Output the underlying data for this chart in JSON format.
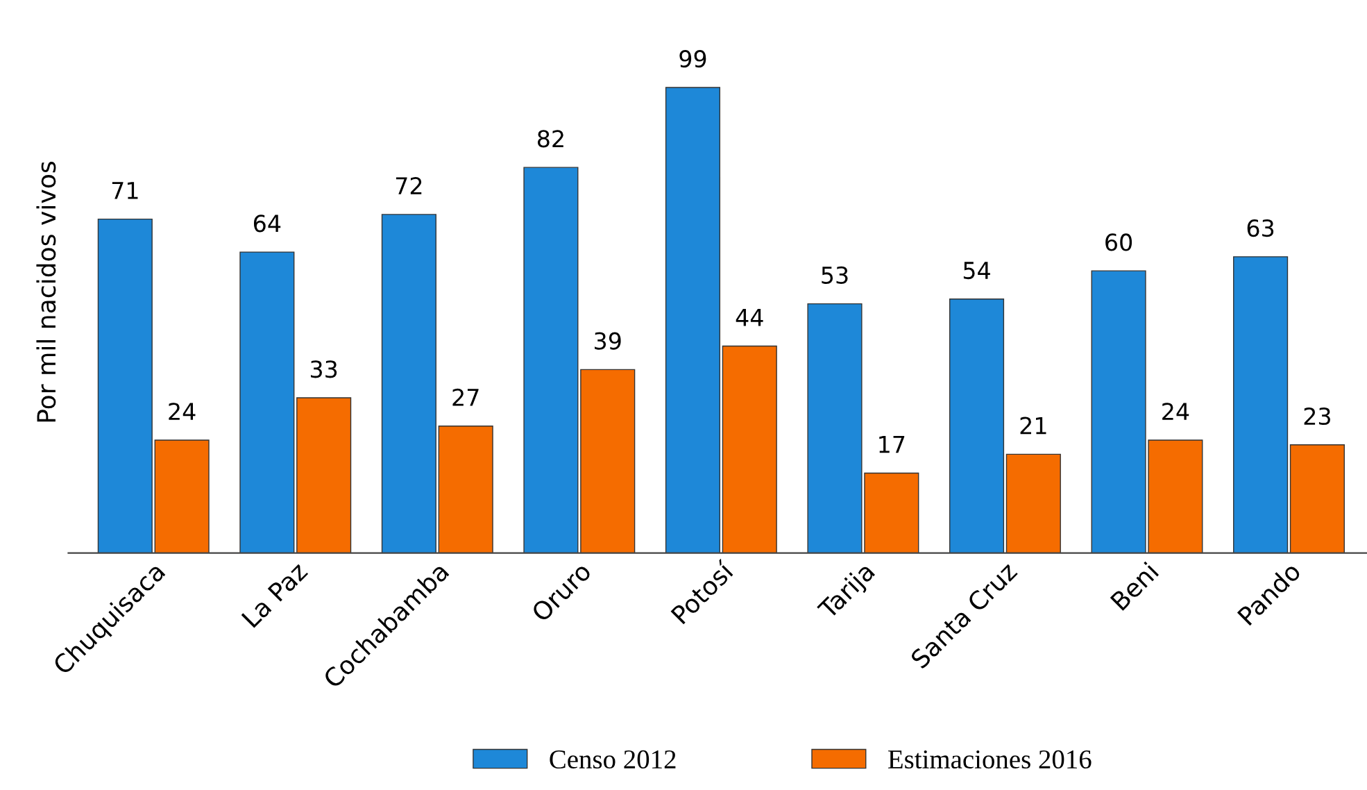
{
  "chart_data": {
    "type": "bar",
    "ylabel": "Por mil nacidos vivos",
    "categories": [
      "Chuquisaca",
      "La Paz",
      "Cochabamba",
      "Oruro",
      "Potosí",
      "Tarija",
      "Santa Cruz",
      "Beni",
      "Pando"
    ],
    "series": [
      {
        "name": "Censo 2012",
        "color": "#1e88d8",
        "values": [
          71,
          64,
          72,
          82,
          99,
          53,
          54,
          60,
          63
        ]
      },
      {
        "name": "Estimaciones 2016",
        "color": "#f56c00",
        "values": [
          24,
          33,
          27,
          39,
          44,
          17,
          21,
          24,
          23
        ]
      }
    ],
    "data_labels": true,
    "legend": "bottom",
    "grid": false,
    "tick_labels": "x"
  }
}
